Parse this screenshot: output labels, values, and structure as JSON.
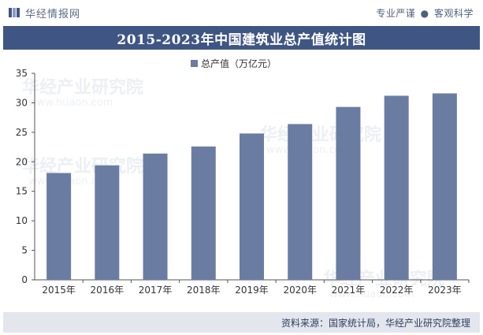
{
  "header": {
    "brand": "华经情报网",
    "slogan_part1": "专业严谨",
    "slogan_sep": "●",
    "slogan_part2": "客观科学"
  },
  "watermark": {
    "cn": "华经产业研究院",
    "url": "www.huaon.com"
  },
  "colors": {
    "title_band": "#3f5684",
    "bar": "#6b7ca3",
    "footer_bg": "#e3e6ec"
  },
  "chart_data": {
    "type": "bar",
    "title": "2015-2023年中国建筑业总产值统计图",
    "categories": [
      "2015年",
      "2016年",
      "2017年",
      "2018年",
      "2019年",
      "2020年",
      "2021年",
      "2022年",
      "2023年"
    ],
    "series": [
      {
        "name": "总产值（万亿元）",
        "values": [
          18.1,
          19.4,
          21.4,
          22.6,
          24.8,
          26.4,
          29.3,
          31.2,
          31.6
        ]
      }
    ],
    "yticks": [
      0,
      5,
      10,
      15,
      20,
      25,
      30,
      35
    ],
    "ylim": [
      0,
      35
    ],
    "xlabel": "",
    "ylabel": "",
    "legend_position": "top-center",
    "grid": false
  },
  "footer": {
    "source": "资料来源：国家统计局，华经产业研究院整理"
  }
}
